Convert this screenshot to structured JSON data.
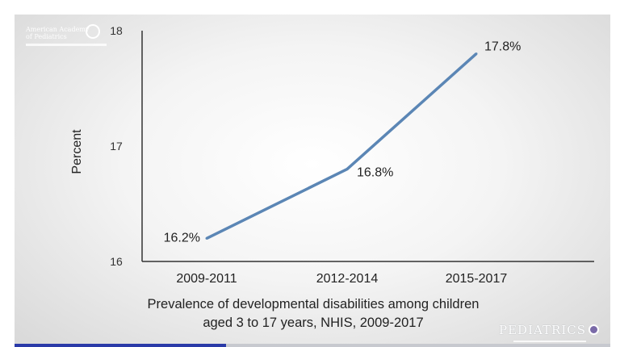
{
  "slide": {
    "logo_text": "American Academy\nof Pediatrics",
    "journal_brand": "PEDIATRICS"
  },
  "video_progress": 0.355,
  "chart_data": {
    "type": "line",
    "categories": [
      "2009-2011",
      "2012-2014",
      "2015-2017"
    ],
    "series": [
      {
        "values": [
          16.2,
          16.8,
          17.8
        ],
        "labels": [
          "16.2%",
          "16.8%",
          "17.8%"
        ],
        "color": "#5b86b5"
      }
    ],
    "ylim": [
      16,
      18
    ],
    "yticks": [
      16,
      17,
      18
    ],
    "ylabel": "Percent",
    "xlabel_lines": [
      "Prevalence of developmental disabilities among children",
      "aged 3 to 17 years, NHIS, 2009-2017"
    ],
    "grid": false
  }
}
